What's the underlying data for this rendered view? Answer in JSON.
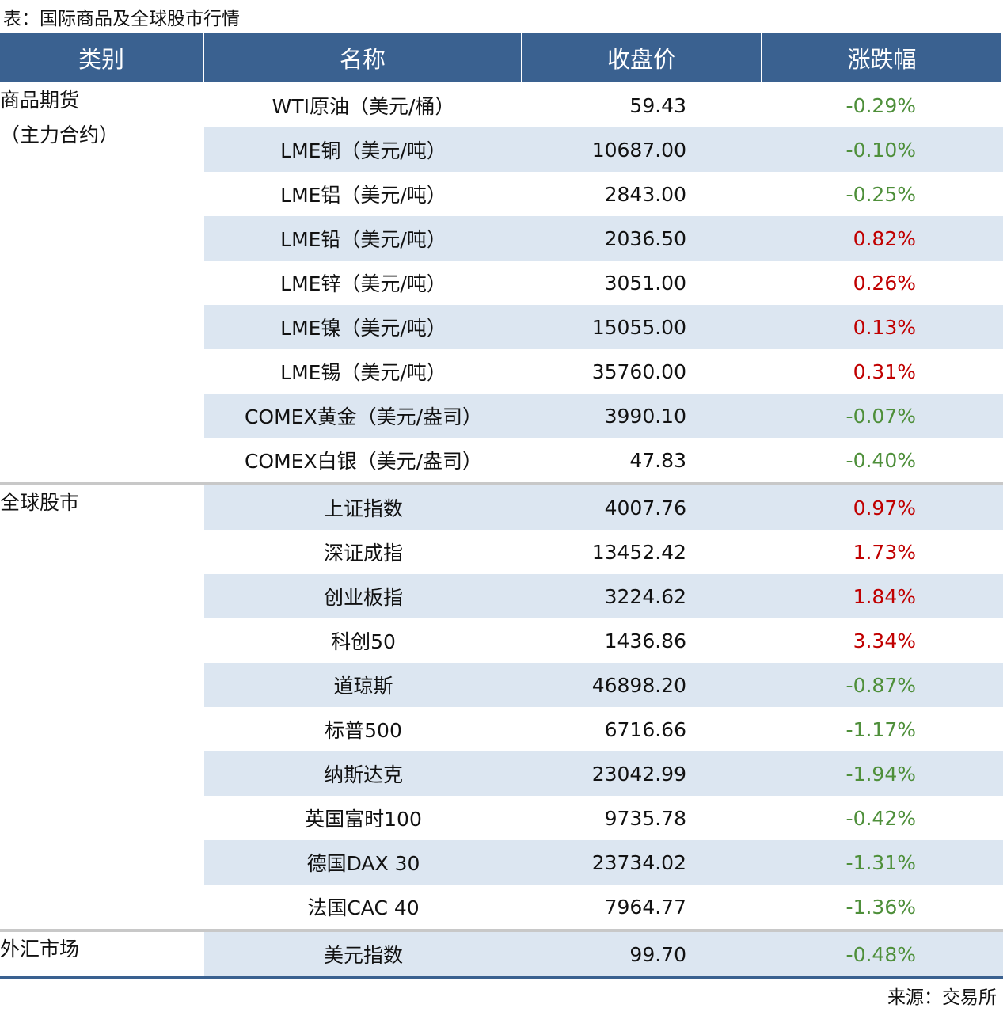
{
  "header": {
    "title": "表：国际商品及全球股市行情"
  },
  "table": {
    "columns": [
      "类别",
      "名称",
      "收盘价",
      "涨跌幅"
    ],
    "up_color": "#c00000",
    "down_color": "#4e8f3a",
    "stripe_color": "#dce6f1",
    "header_color": "#3a6190",
    "groups": [
      {
        "category": [
          "商品期货",
          "（主力合约）"
        ],
        "rows": [
          [
            "WTI原油（美元/桶）",
            "59.43",
            "-0.29%"
          ],
          [
            "LME铜（美元/吨）",
            "10687.00",
            "-0.10%"
          ],
          [
            "LME铝（美元/吨）",
            "2843.00",
            "-0.25%"
          ],
          [
            "LME铅（美元/吨）",
            "2036.50",
            "0.82%"
          ],
          [
            "LME锌（美元/吨）",
            "3051.00",
            "0.26%"
          ],
          [
            "LME镍（美元/吨）",
            "15055.00",
            "0.13%"
          ],
          [
            "LME锡（美元/吨）",
            "35760.00",
            "0.31%"
          ],
          [
            "COMEX黄金（美元/盎司）",
            "3990.10",
            "-0.07%"
          ],
          [
            "COMEX白银（美元/盎司）",
            "47.83",
            "-0.40%"
          ]
        ]
      },
      {
        "category": [
          "全球股市"
        ],
        "rows": [
          [
            "上证指数",
            "4007.76",
            "0.97%"
          ],
          [
            "深证成指",
            "13452.42",
            "1.73%"
          ],
          [
            "创业板指",
            "3224.62",
            "1.84%"
          ],
          [
            "科创50",
            "1436.86",
            "3.34%"
          ],
          [
            "道琼斯",
            "46898.20",
            "-0.87%"
          ],
          [
            "标普500",
            "6716.66",
            "-1.17%"
          ],
          [
            "纳斯达克",
            "23042.99",
            "-1.94%"
          ],
          [
            "英国富时100",
            "9735.78",
            "-0.42%"
          ],
          [
            "德国DAX 30",
            "23734.02",
            "-1.31%"
          ],
          [
            "法国CAC 40",
            "7964.77",
            "-1.36%"
          ]
        ]
      },
      {
        "category": [
          "外汇市场"
        ],
        "rows": [
          [
            "美元指数",
            "99.70",
            "-0.48%"
          ]
        ]
      }
    ]
  },
  "footer": {
    "source": "来源：交易所"
  }
}
